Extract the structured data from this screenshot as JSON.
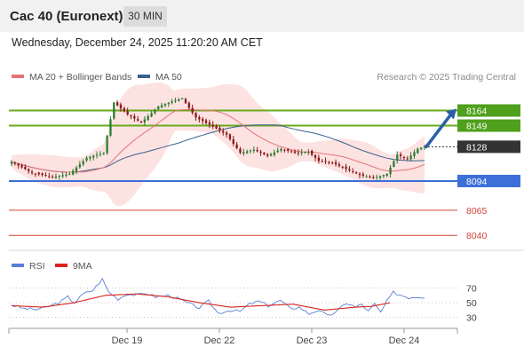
{
  "header": {
    "title": "Cac 40 (Euronext)",
    "timeframe": "30 MIN",
    "datetime": "Wednesday, December 24, 2025 11:20:20 AM CET"
  },
  "legend": {
    "bollinger_label": "MA 20 + Bollinger Bands",
    "ma50_label": "MA 50",
    "credit": "Research © 2025 Trading Central"
  },
  "colors": {
    "bullish": "#2e7d32",
    "bearish": "#8b1a1a",
    "support_resistance": "#6aaa1e",
    "current_line": "#3d6fd8",
    "lower_levels": "#d0433b",
    "ma20": "#e57373",
    "ma50": "#3a6190",
    "bollinger_fill": "#fde2e2",
    "arrow": "#2a5fa8",
    "rsi": "#5b7fd6",
    "rsi_ma": "#d9261c"
  },
  "chart_data": [
    {
      "type": "candlestick",
      "title": "Cac 40 (Euronext)",
      "xlabel": "",
      "ylabel": "",
      "ylim": [
        8027,
        8190
      ],
      "x_ticks": [
        "Dec 19",
        "Dec 22",
        "Dec 23",
        "Dec 24"
      ],
      "y_levels": [
        {
          "label": "8164",
          "value": 8164,
          "kind": "resistance"
        },
        {
          "label": "8149",
          "value": 8149,
          "kind": "resistance"
        },
        {
          "label": "8128",
          "value": 8128,
          "kind": "current"
        },
        {
          "label": "8094",
          "value": 8094,
          "kind": "support"
        },
        {
          "label": "8065",
          "value": 8065,
          "kind": "level"
        },
        {
          "label": "8040",
          "value": 8040,
          "kind": "level"
        }
      ],
      "series": [
        {
          "name": "MA 20 + Bollinger Bands"
        },
        {
          "name": "MA 50"
        }
      ],
      "close_path": [
        [
          0,
          8113
        ],
        [
          6,
          8102
        ],
        [
          12,
          8098
        ],
        [
          17,
          8101
        ],
        [
          22,
          8117
        ],
        [
          27,
          8122
        ],
        [
          30,
          8172
        ],
        [
          34,
          8160
        ],
        [
          38,
          8152
        ],
        [
          43,
          8168
        ],
        [
          47,
          8173
        ],
        [
          50,
          8176
        ],
        [
          54,
          8157
        ],
        [
          58,
          8150
        ],
        [
          63,
          8140
        ],
        [
          67,
          8122
        ],
        [
          71,
          8125
        ],
        [
          75,
          8119
        ],
        [
          79,
          8126
        ],
        [
          83,
          8122
        ],
        [
          87,
          8123
        ],
        [
          90,
          8114
        ],
        [
          94,
          8112
        ],
        [
          98,
          8106
        ],
        [
          102,
          8100
        ],
        [
          106,
          8097
        ],
        [
          110,
          8101
        ],
        [
          113,
          8120
        ],
        [
          116,
          8116
        ],
        [
          119,
          8126
        ],
        [
          121,
          8128
        ]
      ],
      "forecast_arrow": {
        "from": 8128,
        "to": 8164
      },
      "legend_position": "top-left"
    },
    {
      "type": "line",
      "title": "",
      "xlabel": "",
      "ylabel": "",
      "ylim": [
        20,
        85
      ],
      "y_ticks": [
        70,
        50,
        30
      ],
      "series": [
        {
          "name": "RSI",
          "values": [
            [
              0,
              47
            ],
            [
              4,
              42
            ],
            [
              8,
              41
            ],
            [
              12,
              45
            ],
            [
              16,
              52
            ],
            [
              18,
              58
            ],
            [
              20,
              50
            ],
            [
              23,
              62
            ],
            [
              26,
              67
            ],
            [
              29,
              82
            ],
            [
              31,
              65
            ],
            [
              34,
              55
            ],
            [
              37,
              62
            ],
            [
              40,
              60
            ],
            [
              43,
              63
            ],
            [
              46,
              58
            ],
            [
              50,
              60
            ],
            [
              53,
              56
            ],
            [
              56,
              50
            ],
            [
              60,
              43
            ],
            [
              63,
              52
            ],
            [
              66,
              36
            ],
            [
              70,
              40
            ],
            [
              73,
              38
            ],
            [
              76,
              48
            ],
            [
              79,
              52
            ],
            [
              82,
              46
            ],
            [
              86,
              53
            ],
            [
              89,
              42
            ],
            [
              92,
              44
            ],
            [
              95,
              35
            ],
            [
              98,
              40
            ],
            [
              101,
              32
            ],
            [
              104,
              38
            ],
            [
              107,
              50
            ],
            [
              110,
              44
            ],
            [
              112,
              48
            ],
            [
              114,
              38
            ],
            [
              116,
              48
            ],
            [
              118,
              37
            ],
            [
              120,
              52
            ],
            [
              122,
              64
            ],
            [
              124,
              61
            ],
            [
              127,
              57
            ],
            [
              129,
              58
            ],
            [
              132,
              58
            ]
          ]
        },
        {
          "name": "9MA",
          "values": [
            [
              0,
              46
            ],
            [
              10,
              44
            ],
            [
              20,
              50
            ],
            [
              30,
              60
            ],
            [
              40,
              62
            ],
            [
              50,
              58
            ],
            [
              60,
              50
            ],
            [
              70,
              44
            ],
            [
              80,
              46
            ],
            [
              90,
              48
            ],
            [
              100,
              40
            ],
            [
              110,
              44
            ],
            [
              115,
              45
            ],
            [
              121,
              50
            ]
          ]
        }
      ],
      "legend_position": "top-left"
    }
  ]
}
